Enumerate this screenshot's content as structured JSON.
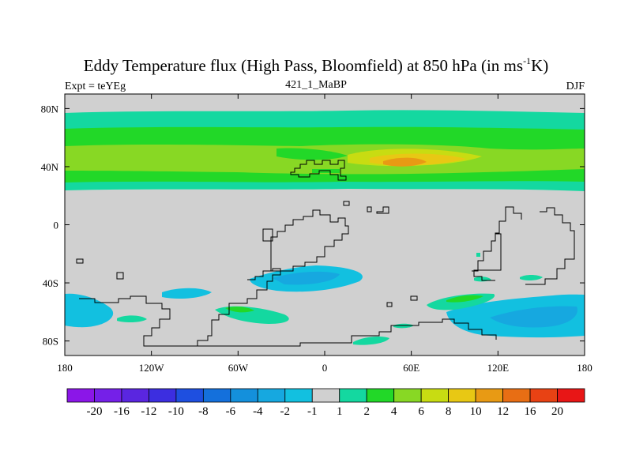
{
  "header": {
    "title_main": "Eddy Temperature flux (High Pass, Bloomfield) at 850 hPa (in ms",
    "title_sup": "-1",
    "title_end": "K)",
    "experiment": "Expt = teYEg",
    "run_id": "421_1_MaBP",
    "season": "DJF"
  },
  "chart_data": {
    "type": "contour-map",
    "title": "Eddy Temperature flux (High Pass, Bloomfield) at 850 hPa (in ms-1K)",
    "units": "ms-1K",
    "xlim": [
      -180,
      180
    ],
    "ylim": [
      -90,
      90
    ],
    "x_ticks": [
      {
        "value": -180,
        "label": "180"
      },
      {
        "value": -120,
        "label": "120W"
      },
      {
        "value": -60,
        "label": "60W"
      },
      {
        "value": 0,
        "label": "0"
      },
      {
        "value": 60,
        "label": "60E"
      },
      {
        "value": 120,
        "label": "120E"
      },
      {
        "value": 180,
        "label": "180"
      }
    ],
    "y_ticks": [
      {
        "value": 80,
        "label": "80N"
      },
      {
        "value": 40,
        "label": "40N"
      },
      {
        "value": 0,
        "label": "0"
      },
      {
        "value": -40,
        "label": "40S"
      },
      {
        "value": -80,
        "label": "80S"
      }
    ],
    "background_value_range": "-1 to 1",
    "colorbar": {
      "labels": [
        "-20",
        "-16",
        "-12",
        "-10",
        "-8",
        "-6",
        "-4",
        "-2",
        "-1",
        "1",
        "2",
        "4",
        "6",
        "8",
        "10",
        "12",
        "16",
        "20"
      ],
      "colors": [
        "#8b16e8",
        "#7520e8",
        "#5a26e0",
        "#3c2ee0",
        "#1e4fe0",
        "#1470dc",
        "#1490dc",
        "#16a8e0",
        "#12c0e0",
        "#d0d0d0",
        "#14d8a0",
        "#22d828",
        "#88d824",
        "#c8dc12",
        "#e8c814",
        "#e89a14",
        "#e86e14",
        "#e84214",
        "#e81616"
      ]
    },
    "regions": [
      {
        "label": "NH storm track outer band",
        "value_range": "1 to 2",
        "lon_range": [
          -180,
          180
        ],
        "lat_range": [
          28,
          82
        ]
      },
      {
        "label": "NH storm track middle band",
        "value_range": "2 to 4",
        "lon_range": [
          -180,
          180
        ],
        "lat_range": [
          32,
          72
        ]
      },
      {
        "label": "NH storm track core band",
        "value_range": "4 to 6",
        "lon_range": [
          -180,
          180
        ],
        "lat_range": [
          38,
          52
        ]
      },
      {
        "label": "Eurasian jet maximum",
        "value_range": "6 to 10",
        "lon_range": [
          25,
          110
        ],
        "lat_range": [
          36,
          50
        ]
      },
      {
        "label": "South Atlantic negative",
        "value_range": "-2 to -4",
        "lon_range": [
          -55,
          10
        ],
        "lat_range": [
          -58,
          -34
        ]
      },
      {
        "label": "Southern Indian/Pacific negative",
        "value_range": "-2 to -4",
        "lon_range": [
          90,
          180
        ],
        "lat_range": [
          -80,
          -50
        ]
      },
      {
        "label": "Southern Ocean positive patches",
        "value_range": "1 to 4",
        "lon_range": [
          -80,
          140
        ],
        "lat_range": [
          -84,
          -44
        ]
      }
    ]
  }
}
